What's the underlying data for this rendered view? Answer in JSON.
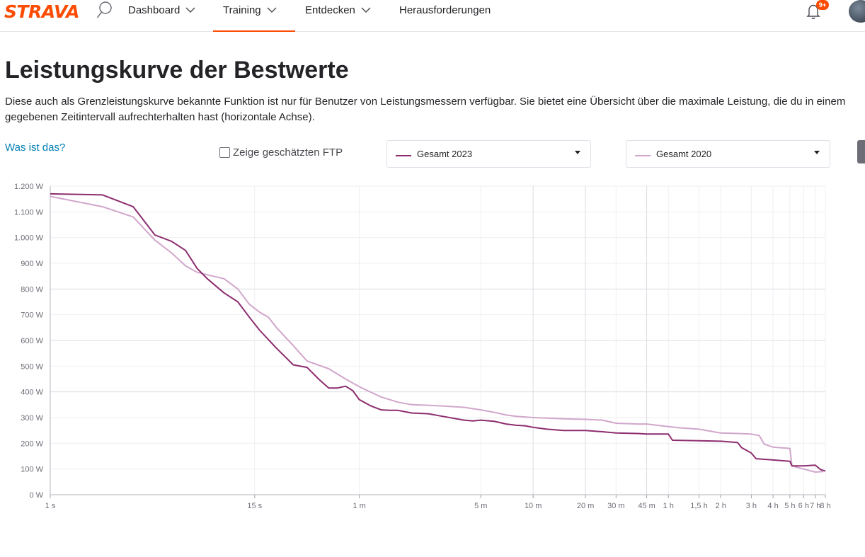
{
  "header": {
    "logo": "STRAVA",
    "nav": [
      {
        "label": "Dashboard",
        "has_menu": true,
        "active": false
      },
      {
        "label": "Training",
        "has_menu": true,
        "active": true
      },
      {
        "label": "Entdecken",
        "has_menu": true,
        "active": false
      },
      {
        "label": "Herausforderungen",
        "has_menu": false,
        "active": false
      }
    ],
    "notification_badge": "9+",
    "icons": [
      "search-icon",
      "bell-icon",
      "avatar"
    ]
  },
  "page": {
    "title": "Leistungskurve der Bestwerte",
    "description": "Diese auch als Grenzleistungskurve bekannte Funktion ist nur für Benutzer von Leistungsmessern verfügbar. Sie bietet eine Übersicht über die maximale Leistung, die du in einem gegebenen Zeitintervall aufrechterhalten hast (horizontale Achse).",
    "help_link": "Was ist das?",
    "ftp_toggle_label": "Zeige geschätzten FTP",
    "ftp_checked": false,
    "select_primary": "Gesamt 2023",
    "select_secondary": "Gesamt 2020"
  },
  "colors": {
    "accent": "#fc4c02",
    "link": "#007fb6",
    "series_2023": "#8d2d6f",
    "series_2020": "#d1a6cb"
  },
  "chart_data": {
    "type": "line",
    "x_scale": "log",
    "x_unit": "seconds",
    "x_ticks": [
      {
        "label": "1 s",
        "sec": 1
      },
      {
        "label": "15 s",
        "sec": 15
      },
      {
        "label": "1 m",
        "sec": 60
      },
      {
        "label": "5 m",
        "sec": 300
      },
      {
        "label": "10 m",
        "sec": 600
      },
      {
        "label": "20 m",
        "sec": 1200
      },
      {
        "label": "30 m",
        "sec": 1800
      },
      {
        "label": "45 m",
        "sec": 2700
      },
      {
        "label": "1 h",
        "sec": 3600
      },
      {
        "label": "1,5 h",
        "sec": 5400
      },
      {
        "label": "2 h",
        "sec": 7200
      },
      {
        "label": "3 h",
        "sec": 10800
      },
      {
        "label": "4 h",
        "sec": 14400
      },
      {
        "label": "5 h",
        "sec": 18000
      },
      {
        "label": "6 h",
        "sec": 21600
      },
      {
        "label": "7 h",
        "sec": 25200
      },
      {
        "label": "8 h",
        "sec": 28800
      }
    ],
    "y_ticks": [
      {
        "label": "0 W",
        "value": 0
      },
      {
        "label": "100 W",
        "value": 100
      },
      {
        "label": "200 W",
        "value": 200
      },
      {
        "label": "300 W",
        "value": 300
      },
      {
        "label": "400 W",
        "value": 400
      },
      {
        "label": "500 W",
        "value": 500
      },
      {
        "label": "600 W",
        "value": 600
      },
      {
        "label": "700 W",
        "value": 700
      },
      {
        "label": "800 W",
        "value": 800
      },
      {
        "label": "900 W",
        "value": 900
      },
      {
        "label": "1.000 W",
        "value": 1000
      },
      {
        "label": "1.100 W",
        "value": 1100
      },
      {
        "label": "1.200 W",
        "value": 1200
      }
    ],
    "ylim": [
      0,
      1200
    ],
    "xlim": [
      1,
      28800
    ],
    "grid": true,
    "series": [
      {
        "name": "Gesamt 2023",
        "color": "#8d2d6f",
        "points": [
          [
            1,
            1170
          ],
          [
            2,
            1166
          ],
          [
            3,
            1120
          ],
          [
            4,
            1010
          ],
          [
            5,
            985
          ],
          [
            6,
            950
          ],
          [
            7,
            880
          ],
          [
            8,
            840
          ],
          [
            10,
            785
          ],
          [
            12,
            750
          ],
          [
            14,
            690
          ],
          [
            16,
            640
          ],
          [
            20,
            570
          ],
          [
            25,
            505
          ],
          [
            30,
            495
          ],
          [
            35,
            450
          ],
          [
            40,
            415
          ],
          [
            45,
            415
          ],
          [
            50,
            422
          ],
          [
            55,
            405
          ],
          [
            60,
            370
          ],
          [
            70,
            345
          ],
          [
            80,
            330
          ],
          [
            90,
            328
          ],
          [
            100,
            328
          ],
          [
            120,
            318
          ],
          [
            150,
            315
          ],
          [
            180,
            305
          ],
          [
            240,
            290
          ],
          [
            270,
            287
          ],
          [
            300,
            290
          ],
          [
            360,
            285
          ],
          [
            420,
            275
          ],
          [
            480,
            270
          ],
          [
            540,
            268
          ],
          [
            600,
            262
          ],
          [
            720,
            255
          ],
          [
            900,
            250
          ],
          [
            1200,
            250
          ],
          [
            1500,
            245
          ],
          [
            1800,
            240
          ],
          [
            2400,
            238
          ],
          [
            2700,
            236
          ],
          [
            3600,
            236
          ],
          [
            3800,
            212
          ],
          [
            5400,
            210
          ],
          [
            7200,
            208
          ],
          [
            9000,
            203
          ],
          [
            9500,
            183
          ],
          [
            10800,
            162
          ],
          [
            11500,
            140
          ],
          [
            14400,
            135
          ],
          [
            18000,
            130
          ],
          [
            18500,
            112
          ],
          [
            21600,
            112
          ],
          [
            25200,
            115
          ],
          [
            27000,
            98
          ],
          [
            28800,
            92
          ]
        ]
      },
      {
        "name": "Gesamt 2020",
        "color": "#d1a6cb",
        "points": [
          [
            1,
            1160
          ],
          [
            2,
            1120
          ],
          [
            3,
            1080
          ],
          [
            4,
            990
          ],
          [
            5,
            940
          ],
          [
            6,
            890
          ],
          [
            7,
            865
          ],
          [
            8,
            855
          ],
          [
            10,
            840
          ],
          [
            12,
            800
          ],
          [
            14,
            740
          ],
          [
            16,
            710
          ],
          [
            18,
            690
          ],
          [
            20,
            650
          ],
          [
            25,
            580
          ],
          [
            30,
            520
          ],
          [
            40,
            490
          ],
          [
            50,
            450
          ],
          [
            60,
            420
          ],
          [
            80,
            380
          ],
          [
            100,
            360
          ],
          [
            120,
            350
          ],
          [
            150,
            348
          ],
          [
            180,
            345
          ],
          [
            240,
            340
          ],
          [
            300,
            330
          ],
          [
            360,
            320
          ],
          [
            420,
            310
          ],
          [
            480,
            305
          ],
          [
            600,
            300
          ],
          [
            720,
            298
          ],
          [
            900,
            295
          ],
          [
            1200,
            293
          ],
          [
            1500,
            290
          ],
          [
            1800,
            278
          ],
          [
            2400,
            275
          ],
          [
            2700,
            275
          ],
          [
            3600,
            265
          ],
          [
            4200,
            260
          ],
          [
            5400,
            255
          ],
          [
            7200,
            240
          ],
          [
            9000,
            238
          ],
          [
            10800,
            236
          ],
          [
            12000,
            230
          ],
          [
            12800,
            197
          ],
          [
            14400,
            185
          ],
          [
            18000,
            180
          ],
          [
            18500,
            112
          ],
          [
            21600,
            100
          ],
          [
            25200,
            88
          ],
          [
            28000,
            90
          ]
        ]
      }
    ]
  }
}
